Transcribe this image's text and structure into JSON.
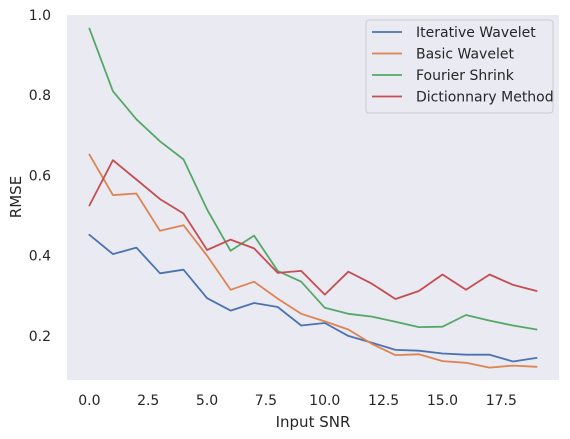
{
  "chart_data": {
    "type": "line",
    "title": "",
    "xlabel": "Input SNR",
    "ylabel": "RMSE",
    "xlim": [
      -0.95,
      19.95
    ],
    "ylim": [
      0.09,
      1.0
    ],
    "xticks": [
      0.0,
      2.5,
      5.0,
      7.5,
      10.0,
      12.5,
      15.0,
      17.5
    ],
    "xtick_labels": [
      "0.0",
      "2.5",
      "5.0",
      "7.5",
      "10.0",
      "12.5",
      "15.0",
      "17.5"
    ],
    "yticks": [
      0.2,
      0.4,
      0.6,
      0.8,
      1.0
    ],
    "ytick_labels": [
      "0.2",
      "0.4",
      "0.6",
      "0.8",
      "1.0"
    ],
    "grid": false,
    "legend_position": "top-right",
    "background": "#eaeaf2",
    "x": [
      0,
      1,
      2,
      3,
      4,
      5,
      6,
      7,
      8,
      9,
      10,
      11,
      12,
      13,
      14,
      15,
      16,
      17,
      18,
      19
    ],
    "series": [
      {
        "name": "Iterative Wavelet",
        "color": "#4c72b0",
        "values": [
          0.452,
          0.404,
          0.42,
          0.356,
          0.365,
          0.294,
          0.263,
          0.282,
          0.272,
          0.226,
          0.232,
          0.2,
          0.183,
          0.165,
          0.163,
          0.156,
          0.153,
          0.153,
          0.136,
          0.145
        ]
      },
      {
        "name": "Basic Wavelet",
        "color": "#dd8452",
        "values": [
          0.652,
          0.551,
          0.555,
          0.462,
          0.476,
          0.4,
          0.315,
          0.335,
          0.293,
          0.255,
          0.236,
          0.216,
          0.18,
          0.152,
          0.154,
          0.137,
          0.133,
          0.121,
          0.126,
          0.123
        ]
      },
      {
        "name": "Fourier Shrink",
        "color": "#55a868",
        "values": [
          0.966,
          0.81,
          0.74,
          0.685,
          0.64,
          0.515,
          0.412,
          0.45,
          0.362,
          0.335,
          0.27,
          0.255,
          0.248,
          0.235,
          0.222,
          0.223,
          0.252,
          0.238,
          0.226,
          0.216
        ]
      },
      {
        "name": "Dictionnary Method",
        "color": "#c44e52",
        "values": [
          0.525,
          0.638,
          0.59,
          0.541,
          0.505,
          0.414,
          0.44,
          0.418,
          0.357,
          0.362,
          0.303,
          0.36,
          0.33,
          0.292,
          0.312,
          0.353,
          0.315,
          0.353,
          0.327,
          0.312
        ]
      }
    ]
  }
}
